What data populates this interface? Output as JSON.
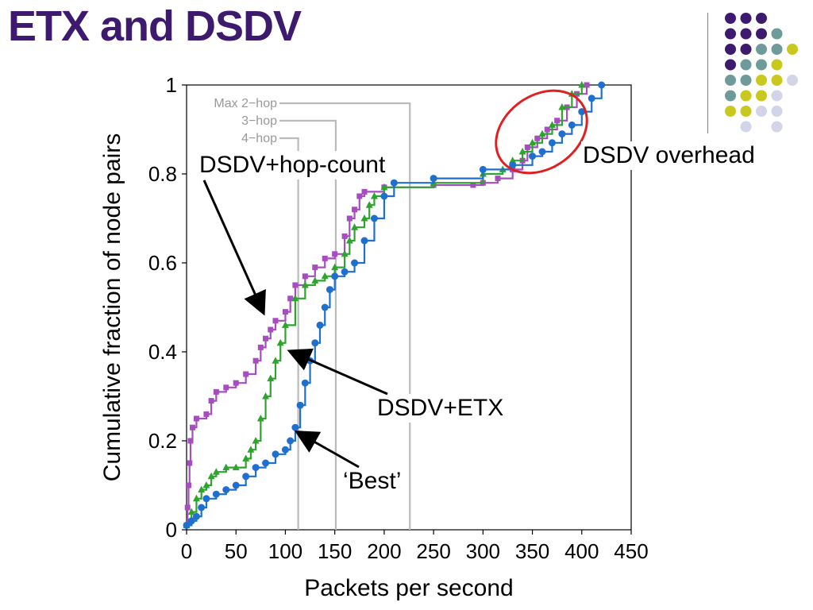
{
  "slide": {
    "title": "ETX and DSDV"
  },
  "decoration": {
    "dot_colors": {
      "purple": "#3d1a6e",
      "teal": "#6f9a9a",
      "yellow": "#c8c81e",
      "lavender": "#d4d4e8"
    },
    "dot_grid": [
      [
        "purple",
        "purple",
        "purple",
        "",
        ""
      ],
      [
        "purple",
        "purple",
        "purple",
        "teal",
        ""
      ],
      [
        "purple",
        "purple",
        "teal",
        "teal",
        "yellow"
      ],
      [
        "purple",
        "teal",
        "teal",
        "yellow",
        ""
      ],
      [
        "teal",
        "teal",
        "yellow",
        "yellow",
        "lavender"
      ],
      [
        "teal",
        "yellow",
        "yellow",
        "lavender",
        ""
      ],
      [
        "yellow",
        "yellow",
        "lavender",
        "lavender",
        ""
      ],
      [
        "",
        "lavender",
        "",
        "lavender",
        ""
      ]
    ]
  },
  "chart_data": {
    "type": "line",
    "xlabel": "Packets per second",
    "ylabel": "Cumulative fraction of node pairs",
    "xlim": [
      0,
      450
    ],
    "ylim": [
      0,
      1
    ],
    "xticks": [
      "0",
      "50",
      "100",
      "150",
      "200",
      "250",
      "300",
      "350",
      "400",
      "450"
    ],
    "yticks": [
      "0",
      "0.2",
      "0.4",
      "0.6",
      "0.8",
      "1"
    ],
    "grid": false,
    "colors": {
      "hopcount": "#a64dbf",
      "etx": "#2ea32e",
      "best": "#1f6fcf",
      "reference": "#bbbbbb",
      "highlight": "#e02020"
    },
    "reference_lines": [
      {
        "label": "Max 2−hop",
        "x": 226
      },
      {
        "label": "3−hop",
        "x": 151
      },
      {
        "label": "4−hop",
        "x": 113
      }
    ],
    "series": [
      {
        "key": "hopcount",
        "marker": "square",
        "points": [
          [
            0,
            0.01
          ],
          [
            1,
            0.05
          ],
          [
            2,
            0.1
          ],
          [
            3,
            0.15
          ],
          [
            4,
            0.2
          ],
          [
            6,
            0.23
          ],
          [
            10,
            0.25
          ],
          [
            20,
            0.26
          ],
          [
            25,
            0.29
          ],
          [
            30,
            0.31
          ],
          [
            40,
            0.32
          ],
          [
            50,
            0.33
          ],
          [
            60,
            0.35
          ],
          [
            70,
            0.38
          ],
          [
            75,
            0.41
          ],
          [
            80,
            0.43
          ],
          [
            85,
            0.45
          ],
          [
            90,
            0.47
          ],
          [
            100,
            0.49
          ],
          [
            105,
            0.52
          ],
          [
            110,
            0.55
          ],
          [
            120,
            0.57
          ],
          [
            130,
            0.59
          ],
          [
            140,
            0.61
          ],
          [
            150,
            0.62
          ],
          [
            160,
            0.66
          ],
          [
            165,
            0.7
          ],
          [
            170,
            0.72
          ],
          [
            175,
            0.75
          ],
          [
            180,
            0.76
          ],
          [
            200,
            0.77
          ],
          [
            250,
            0.775
          ],
          [
            290,
            0.775
          ],
          [
            300,
            0.78
          ],
          [
            315,
            0.79
          ],
          [
            330,
            0.81
          ],
          [
            340,
            0.83
          ],
          [
            345,
            0.86
          ],
          [
            355,
            0.88
          ],
          [
            365,
            0.9
          ],
          [
            375,
            0.92
          ],
          [
            385,
            0.95
          ],
          [
            395,
            0.98
          ],
          [
            405,
            1.0
          ]
        ]
      },
      {
        "key": "etx",
        "marker": "triangle",
        "points": [
          [
            0,
            0.01
          ],
          [
            5,
            0.04
          ],
          [
            10,
            0.07
          ],
          [
            15,
            0.09
          ],
          [
            20,
            0.1
          ],
          [
            25,
            0.12
          ],
          [
            30,
            0.13
          ],
          [
            40,
            0.14
          ],
          [
            50,
            0.14
          ],
          [
            60,
            0.16
          ],
          [
            65,
            0.18
          ],
          [
            70,
            0.2
          ],
          [
            75,
            0.25
          ],
          [
            80,
            0.3
          ],
          [
            85,
            0.34
          ],
          [
            90,
            0.38
          ],
          [
            95,
            0.42
          ],
          [
            100,
            0.46
          ],
          [
            110,
            0.52
          ],
          [
            120,
            0.55
          ],
          [
            130,
            0.56
          ],
          [
            140,
            0.57
          ],
          [
            150,
            0.59
          ],
          [
            160,
            0.62
          ],
          [
            165,
            0.65
          ],
          [
            170,
            0.68
          ],
          [
            180,
            0.7
          ],
          [
            185,
            0.73
          ],
          [
            190,
            0.75
          ],
          [
            200,
            0.77
          ],
          [
            250,
            0.78
          ],
          [
            300,
            0.8
          ],
          [
            320,
            0.81
          ],
          [
            330,
            0.83
          ],
          [
            340,
            0.85
          ],
          [
            350,
            0.87
          ],
          [
            360,
            0.89
          ],
          [
            370,
            0.91
          ],
          [
            380,
            0.95
          ],
          [
            390,
            0.98
          ],
          [
            400,
            1.0
          ]
        ]
      },
      {
        "key": "best",
        "marker": "circle",
        "points": [
          [
            0,
            0.01
          ],
          [
            5,
            0.02
          ],
          [
            10,
            0.03
          ],
          [
            15,
            0.05
          ],
          [
            20,
            0.07
          ],
          [
            30,
            0.08
          ],
          [
            40,
            0.09
          ],
          [
            50,
            0.1
          ],
          [
            60,
            0.12
          ],
          [
            70,
            0.14
          ],
          [
            80,
            0.15
          ],
          [
            90,
            0.17
          ],
          [
            100,
            0.18
          ],
          [
            105,
            0.2
          ],
          [
            110,
            0.23
          ],
          [
            115,
            0.28
          ],
          [
            120,
            0.33
          ],
          [
            125,
            0.38
          ],
          [
            130,
            0.42
          ],
          [
            135,
            0.46
          ],
          [
            140,
            0.5
          ],
          [
            145,
            0.54
          ],
          [
            150,
            0.57
          ],
          [
            160,
            0.58
          ],
          [
            170,
            0.6
          ],
          [
            180,
            0.65
          ],
          [
            190,
            0.7
          ],
          [
            200,
            0.75
          ],
          [
            210,
            0.78
          ],
          [
            250,
            0.79
          ],
          [
            300,
            0.81
          ],
          [
            330,
            0.82
          ],
          [
            350,
            0.84
          ],
          [
            360,
            0.85
          ],
          [
            370,
            0.87
          ],
          [
            380,
            0.89
          ],
          [
            390,
            0.91
          ],
          [
            400,
            0.94
          ],
          [
            410,
            0.97
          ],
          [
            420,
            1.0
          ]
        ]
      }
    ]
  },
  "annotations": {
    "hopcount": "DSDV+hop-count",
    "etx": "DSDV+ETX",
    "best": "‘Best’",
    "overhead": "DSDV overhead"
  }
}
